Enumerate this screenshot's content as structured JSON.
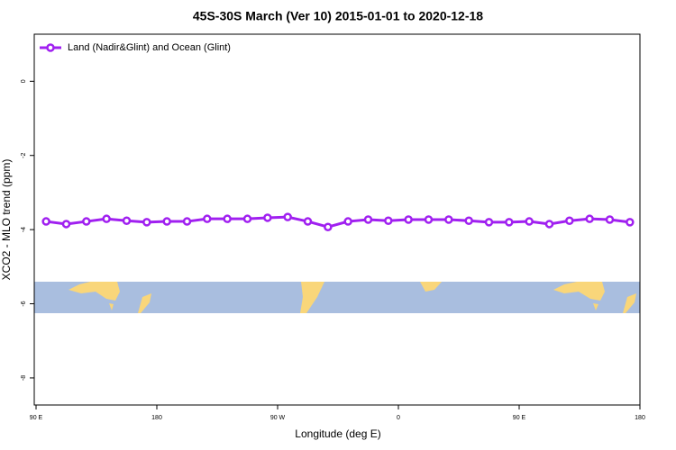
{
  "chart_data": {
    "type": "line",
    "title": "45S-30S March (Ver 10)   2015-01-01 to 2020-12-18",
    "x_label": "Longitude (deg E)",
    "y_label": "XCO2 - MLO trend (ppm)",
    "x": [
      97.5,
      112.5,
      127.5,
      142.5,
      157.5,
      172.5,
      187.5,
      202.5,
      217.5,
      232.5,
      247.5,
      262.5,
      277.5,
      292.5,
      307.5,
      322.5,
      337.5,
      352.5,
      367.5,
      382.5,
      397.5,
      412.5,
      427.5,
      442.5,
      457.5,
      472.5,
      487.5,
      502.5,
      517.5,
      532.5
    ],
    "series": [
      {
        "name": "Land (Nadir&Glint) and Ocean (Glint)",
        "color": "#a020f0",
        "values": [
          -3.78,
          -3.85,
          -3.78,
          -3.71,
          -3.76,
          -3.8,
          -3.78,
          -3.78,
          -3.71,
          -3.71,
          -3.71,
          -3.68,
          -3.66,
          -3.78,
          -3.93,
          -3.78,
          -3.73,
          -3.76,
          -3.73,
          -3.73,
          -3.73,
          -3.76,
          -3.8,
          -3.8,
          -3.78,
          -3.85,
          -3.76,
          -3.71,
          -3.73,
          -3.8
        ]
      }
    ],
    "xlim": [
      90,
      540
    ],
    "xticks": [
      {
        "value": 90,
        "label": "90 E"
      },
      180,
      {
        "value": 270,
        "label": "90 W"
      },
      {
        "value": 360,
        "label": "0"
      },
      {
        "value": 450,
        "label": "90 E"
      },
      {
        "value": 540,
        "label": "180"
      }
    ],
    "ylim": [
      -8.73,
      1.27
    ],
    "yticks": [
      0,
      -2,
      -4,
      -6,
      -8
    ],
    "legend": "top-left"
  }
}
